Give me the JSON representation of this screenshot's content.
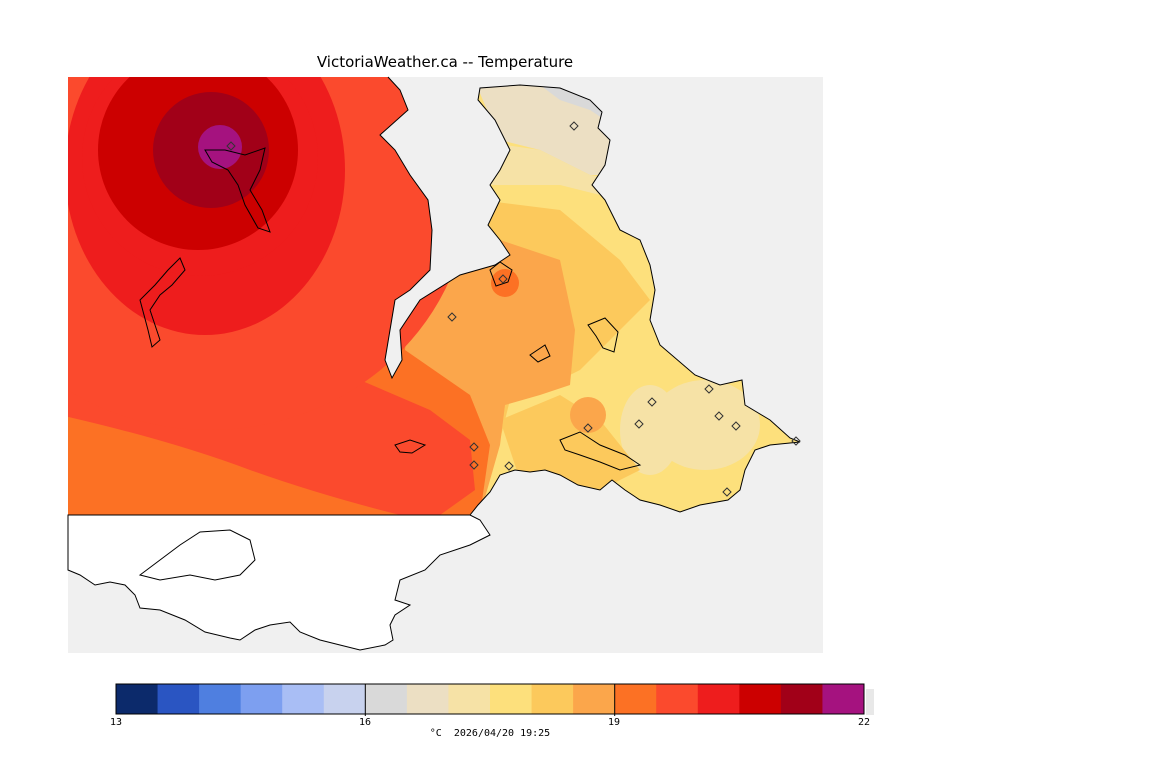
{
  "title": "VictoriaWeather.ca -- Temperature",
  "colorbar": {
    "tick_labels": [
      "13",
      "16",
      "19",
      "22"
    ],
    "units_label": "°C  2026/04/20 19:25",
    "min": 13,
    "max": 22,
    "colors": [
      "#0c2a6b",
      "#2a55c2",
      "#4f7fe0",
      "#7d9ff0",
      "#a9bef5",
      "#c8d2ee",
      "#d9d9d9",
      "#ecdfc3",
      "#f6e2a6",
      "#fde07c",
      "#fcc95c",
      "#fba64b",
      "#fc7124",
      "#fb4a2d",
      "#ee1d1d",
      "#cc0000",
      "#a10018",
      "#a5127f"
    ]
  },
  "map": {
    "ocean_color": "#f0f0f0",
    "land_outside_color": "#ffffff",
    "coastline_color": "#000000",
    "station_marker": "diamond"
  }
}
